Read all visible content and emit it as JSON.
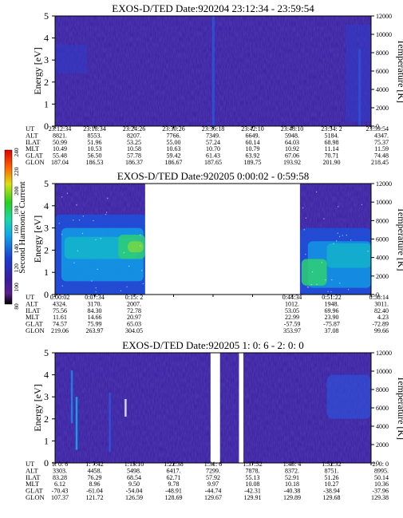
{
  "colors": {
    "background": "#ffffff",
    "panel_base": "#3a1c9c",
    "data_gap": "#ffffff",
    "ink": "#000000"
  },
  "colorbar": {
    "label": "Second Harmonic Current",
    "ticks": [
      "240",
      "220",
      "200",
      "180",
      "160",
      "140",
      "120",
      "100",
      "80"
    ],
    "min": 80,
    "max": 240,
    "scale": [
      "#000000",
      "#5a1e8c",
      "#3a1c9c",
      "#1a3ed0",
      "#10a8e8",
      "#18d8a8",
      "#28d020",
      "#d8e010",
      "#ff6a00",
      "#e00000"
    ]
  },
  "chart_data": [
    {
      "type": "heatmap",
      "title": "EXOS-D/TED   Date:920204   23:12:34 - 23:59:54",
      "ylabel": "Energy [eV]",
      "y2label": "Temperature [K]",
      "ylim": [
        0,
        5
      ],
      "y2lim": [
        0,
        12000
      ],
      "yticks": [
        "0",
        "1",
        "2",
        "3",
        "4",
        "5"
      ],
      "y2ticks": [
        "0",
        "2000",
        "4000",
        "6000",
        "8000",
        "10000",
        "12000"
      ],
      "gaps": [],
      "intensity_notes": "low background; faint bright vertical streaks near 23:36:18 and 23:59:54",
      "table": {
        "row_labels": [
          "UT",
          "ALT",
          "ILAT",
          "MLT",
          "GLAT",
          "GLON"
        ],
        "columns": [
          [
            "23:12:34",
            "8821.",
            "50.99",
            "10.49",
            "55.48",
            "187.04"
          ],
          [
            "23:18:34",
            "8553.",
            "51.96",
            "10.53",
            "56.50",
            "186.53"
          ],
          [
            "23:24:26",
            "8207.",
            "53.25",
            "10.58",
            "57.78",
            "186.37"
          ],
          [
            "23:30:26",
            "7766.",
            "55.00",
            "10.63",
            "59.42",
            "186.67"
          ],
          [
            "23:36:18",
            "7349.",
            "57.24",
            "10.70",
            "61.43",
            "187.65"
          ],
          [
            "23:42:10",
            "6649.",
            "60.14",
            "10.79",
            "63.92",
            "189.75"
          ],
          [
            "23:48:10",
            "5948.",
            "64.03",
            "10.92",
            "67.06",
            "193.92"
          ],
          [
            "23:54: 2",
            "5184.",
            "68.98",
            "11.14",
            "70.71",
            "201.90"
          ],
          [
            "23:59:54",
            "4347.",
            "75.37",
            "11.59",
            "74.48",
            "218.45"
          ]
        ]
      }
    },
    {
      "type": "heatmap",
      "title": "EXOS-D/TED   Date:920205   0:00:02 - 0:59:58",
      "ylabel": "Energy [eV]",
      "y2label": "Temperature [K]",
      "ylim": [
        0,
        5
      ],
      "y2lim": [
        0,
        12000
      ],
      "yticks": [
        "0",
        "1",
        "2",
        "3",
        "4",
        "5"
      ],
      "y2ticks": [
        "0",
        "2000",
        "4000",
        "6000",
        "8000",
        "10000",
        "12000"
      ],
      "gaps": [
        [
          0.285,
          0.775
        ]
      ],
      "intensity_notes": "strong emission 0-3.5 eV before 0:15 and after 0:44",
      "table": {
        "row_labels": [
          "UT",
          "ALT",
          "ILAT",
          "MLT",
          "GLAT",
          "GLON"
        ],
        "columns": [
          [
            "0:00:02",
            "4324.",
            "75.56",
            "11.61",
            "74.57",
            "219.06"
          ],
          [
            "0:07:34",
            "3170.",
            "84.30",
            "14.66",
            "75.99",
            "263.97"
          ],
          [
            "0:15: 2",
            "2007.",
            "72.78",
            "20.97",
            "65.03",
            "304.05"
          ],
          [
            "",
            "",
            "",
            "",
            "",
            ""
          ],
          [
            "",
            "",
            "",
            "",
            "",
            ""
          ],
          [
            "",
            "",
            "",
            "",
            "",
            ""
          ],
          [
            "0:44:34",
            "1012.",
            "53.05",
            "22.99",
            "-57.59",
            "353.97"
          ],
          [
            "0:51:22",
            "1948.",
            "69.96",
            "23.90",
            "-75.87",
            "37.08"
          ],
          [
            "0:58:14",
            "3011.",
            "82.40",
            "4.23",
            "-72.89",
            "99.66"
          ]
        ]
      }
    },
    {
      "type": "heatmap",
      "title": "EXOS-D/TED   Date:920205   1: 0: 6 - 2: 0: 0",
      "ylabel": "Energy [eV]",
      "y2label": "Temperature [K]",
      "ylim": [
        0,
        5
      ],
      "y2lim": [
        0,
        12000
      ],
      "yticks": [
        "0",
        "1",
        "2",
        "3",
        "4",
        "5"
      ],
      "y2ticks": [
        "0",
        "2000",
        "4000",
        "6000",
        "8000",
        "10000",
        "12000"
      ],
      "gaps": [
        [
          0.492,
          0.522
        ],
        [
          0.582,
          0.596
        ]
      ],
      "intensity_notes": "mostly background; blue streaks near 1:07 and enhancement near 2:00 at 2-4 eV",
      "table": {
        "row_labels": [
          "UT",
          "ALT",
          "ILAT",
          "MLT",
          "GLAT",
          "GLON"
        ],
        "columns": [
          [
            "1: 0: 6",
            "3303.",
            "83.28",
            "6.12",
            "-70.43",
            "107.37"
          ],
          [
            "1: 7:42",
            "4458.",
            "76.29",
            "8.96",
            "-61.04",
            "121.72"
          ],
          [
            "1:15:10",
            "5498.",
            "68.54",
            "9.50",
            "-54.04",
            "126.59"
          ],
          [
            "1:22:38",
            "6417.",
            "62.71",
            "9.78",
            "-48.91",
            "128.69"
          ],
          [
            "1:31: 6",
            "7299.",
            "57.92",
            "9.97",
            "-44.74",
            "129.67"
          ],
          [
            "1:37:52",
            "7878.",
            "55.13",
            "10.08",
            "-42.31",
            "129.91"
          ],
          [
            "1:45: 4",
            "8372.",
            "52.91",
            "10.18",
            "-40.38",
            "129.89"
          ],
          [
            "1:52:32",
            "8751.",
            "51.26",
            "10.27",
            "-38.94",
            "129.68"
          ],
          [
            "2: 0: 0",
            "8995.",
            "50.14",
            "10.36",
            "-37.96",
            "129.38"
          ]
        ]
      }
    }
  ]
}
